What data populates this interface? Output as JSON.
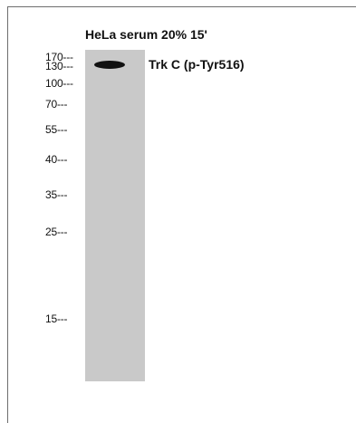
{
  "blot": {
    "sample_label": "HeLa serum 20% 15'",
    "band_label": "Trk C (p-Tyr516)",
    "markers": [
      "170---",
      "130---",
      "100---",
      "70---",
      "55---",
      "40---",
      "35---",
      "25---",
      "15---"
    ]
  },
  "colors": {
    "lane": "#c9c9c9",
    "band": "#111111",
    "text": "#111111",
    "border": "#6e6e6e"
  }
}
